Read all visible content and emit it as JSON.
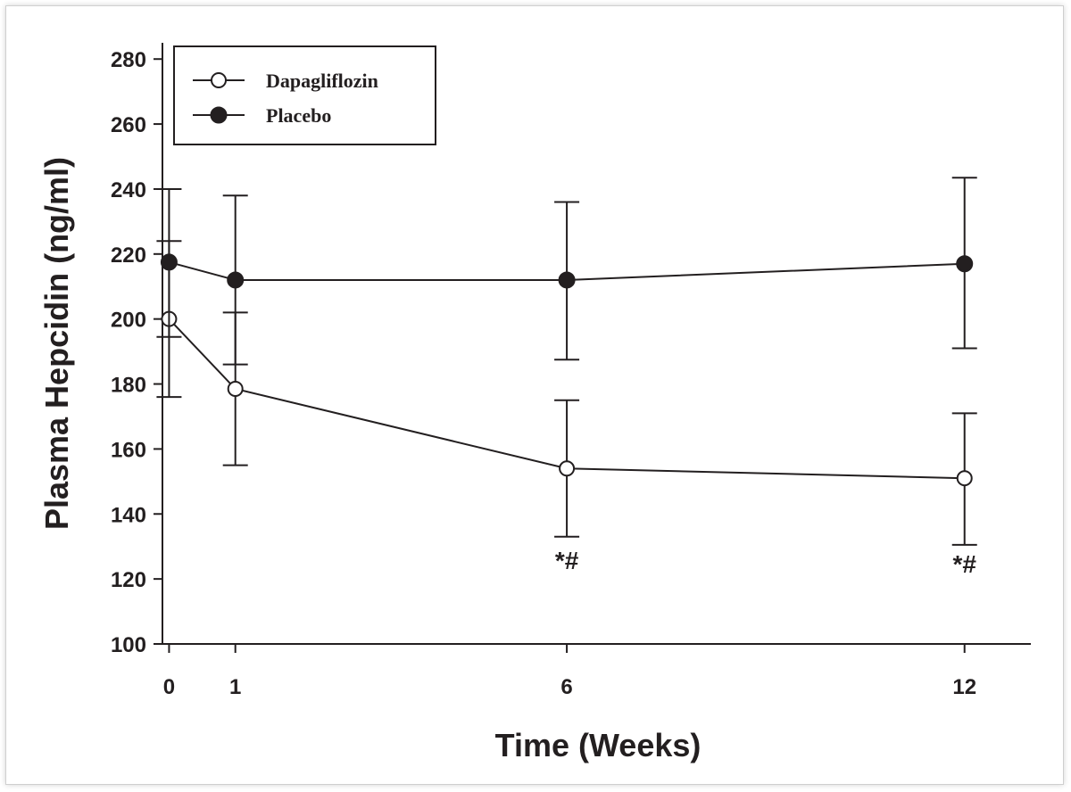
{
  "chart_data": {
    "type": "line",
    "title": "",
    "xlabel": "Time (Weeks)",
    "ylabel": "Plasma Hepcidin (ng/ml)",
    "x": [
      0,
      1,
      6,
      12
    ],
    "x_tick_labels": [
      "0",
      "1",
      "6",
      "12"
    ],
    "xlim": [
      -0.1,
      13
    ],
    "ylim": [
      100,
      285
    ],
    "y_ticks": [
      100,
      120,
      140,
      160,
      180,
      200,
      220,
      240,
      260,
      280
    ],
    "grid": false,
    "legend_position": "top-left",
    "series": [
      {
        "name": "Dapagliflozin",
        "marker": "open-circle",
        "values": [
          200,
          178.5,
          154,
          151
        ],
        "error_upper": [
          224,
          202,
          175,
          171
        ],
        "error_lower": [
          176,
          155,
          133,
          130.5
        ]
      },
      {
        "name": "Placebo",
        "marker": "filled-circle",
        "values": [
          217.5,
          212,
          212,
          217
        ],
        "error_upper": [
          240,
          238,
          236,
          243.5
        ],
        "error_lower": [
          194.5,
          186,
          187.5,
          191
        ]
      }
    ],
    "annotations": [
      {
        "x": 6,
        "y": 123,
        "text": "*#"
      },
      {
        "x": 12,
        "y": 122,
        "text": "*#"
      }
    ]
  }
}
